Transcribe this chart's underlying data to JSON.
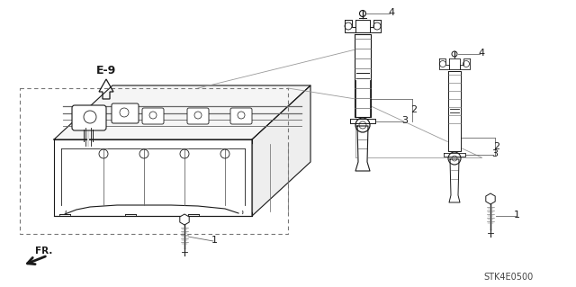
{
  "bg_color": "#ffffff",
  "text_color": "#000000",
  "line_color": "#1a1a1a",
  "gray_color": "#666666",
  "dashed_color": "#777777",
  "light_gray": "#aaaaaa",
  "label_e9": "E-9",
  "label_fr": "FR.",
  "part_code": "STK4E0500",
  "figsize": [
    6.4,
    3.19
  ],
  "dpi": 100
}
